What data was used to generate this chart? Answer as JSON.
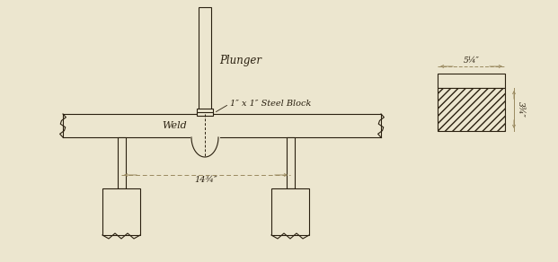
{
  "bg_color": "#ece6cf",
  "line_color": "#2a2010",
  "dim_color": "#9a8a60",
  "labels": {
    "plunger": "Plunger",
    "steel_block": "1″ x 1″ Steel Block",
    "weld": "Weld",
    "span": "14¾″",
    "width": "–5¼″—",
    "height": "3¾″"
  },
  "figsize": [
    6.21,
    2.92
  ],
  "dpi": 100
}
